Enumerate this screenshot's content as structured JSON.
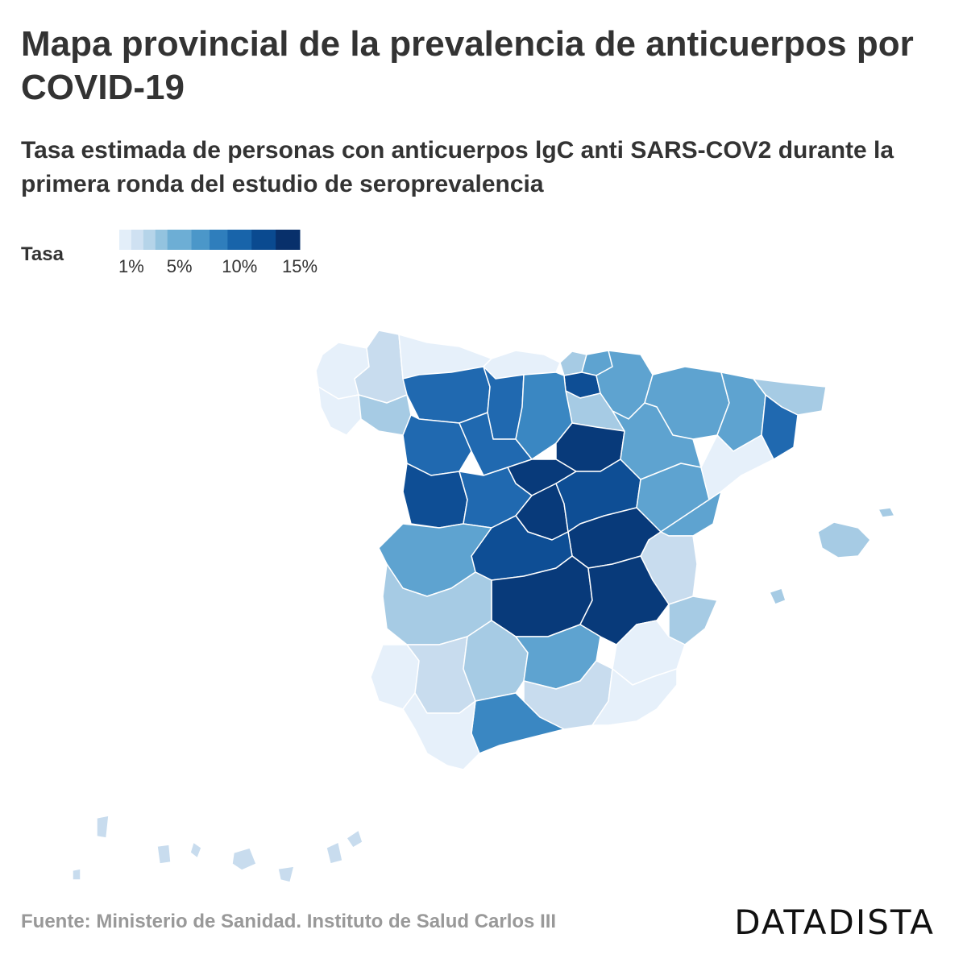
{
  "title": "Mapa provincial de la prevalencia de anticuerpos por COVID-19",
  "subtitle": "Tasa estimada de personas con anticuerpos lgC anti SARS-COV2 durante la primera ronda del estudio de seroprevalencia",
  "legend": {
    "label": "Tasa",
    "ticks": [
      {
        "label": "1%",
        "value": 1
      },
      {
        "label": "5%",
        "value": 5
      },
      {
        "label": "10%",
        "value": 10
      },
      {
        "label": "15%",
        "value": 15
      }
    ],
    "bins": [
      {
        "from": 0,
        "to": 1,
        "color": "#e3eef9"
      },
      {
        "from": 1,
        "to": 2,
        "color": "#cfe1f2"
      },
      {
        "from": 2,
        "to": 3,
        "color": "#b5d4e9"
      },
      {
        "from": 3,
        "to": 4,
        "color": "#93c3df"
      },
      {
        "from": 4,
        "to": 6,
        "color": "#6daed5"
      },
      {
        "from": 6,
        "to": 7.5,
        "color": "#4b97c9"
      },
      {
        "from": 7.5,
        "to": 9,
        "color": "#2f7ebc"
      },
      {
        "from": 9,
        "to": 11,
        "color": "#1864aa"
      },
      {
        "from": 11,
        "to": 13,
        "color": "#0a4a90"
      },
      {
        "from": 13,
        "to": 15,
        "color": "#08306b"
      }
    ]
  },
  "colors": {
    "very_low": "#e6f0fa",
    "low": "#c8dcee",
    "medium_low": "#a6cbe4",
    "medium": "#5ea3d0",
    "medium_high": "#3a87c2",
    "high": "#2069b0",
    "very_high": "#0e4e95",
    "highest": "#083a7a"
  },
  "map": {
    "type": "choropleth",
    "regions": [
      {
        "name": "A Coruña",
        "level": "very_low"
      },
      {
        "name": "Lugo",
        "level": "low"
      },
      {
        "name": "Pontevedra",
        "level": "very_low"
      },
      {
        "name": "Ourense",
        "level": "medium_low"
      },
      {
        "name": "Asturias",
        "level": "very_low"
      },
      {
        "name": "Cantabria",
        "level": "very_low"
      },
      {
        "name": "Bizkaia",
        "level": "medium_low"
      },
      {
        "name": "Gipuzkoa",
        "level": "medium"
      },
      {
        "name": "Araba/Álava",
        "level": "very_high"
      },
      {
        "name": "Navarra",
        "level": "medium"
      },
      {
        "name": "La Rioja",
        "level": "medium_low"
      },
      {
        "name": "León",
        "level": "high"
      },
      {
        "name": "Palencia",
        "level": "high"
      },
      {
        "name": "Burgos",
        "level": "medium_high"
      },
      {
        "name": "Zamora",
        "level": "high"
      },
      {
        "name": "Valladolid",
        "level": "high"
      },
      {
        "name": "Soria",
        "level": "highest"
      },
      {
        "name": "Segovia",
        "level": "highest"
      },
      {
        "name": "Salamanca",
        "level": "very_high"
      },
      {
        "name": "Ávila",
        "level": "high"
      },
      {
        "name": "Madrid",
        "level": "highest"
      },
      {
        "name": "Guadalajara",
        "level": "very_high"
      },
      {
        "name": "Huesca",
        "level": "medium"
      },
      {
        "name": "Zaragoza",
        "level": "medium"
      },
      {
        "name": "Teruel",
        "level": "medium"
      },
      {
        "name": "Lleida",
        "level": "medium"
      },
      {
        "name": "Girona",
        "level": "medium_low"
      },
      {
        "name": "Barcelona",
        "level": "high"
      },
      {
        "name": "Tarragona",
        "level": "very_low"
      },
      {
        "name": "Castellón",
        "level": "medium"
      },
      {
        "name": "Valencia",
        "level": "low"
      },
      {
        "name": "Alicante",
        "level": "medium_low"
      },
      {
        "name": "Cuenca",
        "level": "highest"
      },
      {
        "name": "Toledo",
        "level": "very_high"
      },
      {
        "name": "Ciudad Real",
        "level": "highest"
      },
      {
        "name": "Albacete",
        "level": "highest"
      },
      {
        "name": "Cáceres",
        "level": "medium"
      },
      {
        "name": "Badajoz",
        "level": "medium_low"
      },
      {
        "name": "Huelva",
        "level": "very_low"
      },
      {
        "name": "Sevilla",
        "level": "low"
      },
      {
        "name": "Córdoba",
        "level": "medium_low"
      },
      {
        "name": "Jaén",
        "level": "medium"
      },
      {
        "name": "Granada",
        "level": "low"
      },
      {
        "name": "Almería",
        "level": "very_low"
      },
      {
        "name": "Murcia",
        "level": "very_low"
      },
      {
        "name": "Málaga",
        "level": "medium_high"
      },
      {
        "name": "Cádiz",
        "level": "very_low"
      },
      {
        "name": "Illes Balears",
        "level": "medium_low"
      },
      {
        "name": "Canarias",
        "level": "low"
      }
    ]
  },
  "source": "Fuente: Ministerio de Sanidad. Instituto de Salud Carlos III",
  "brand": "DATADISTA"
}
